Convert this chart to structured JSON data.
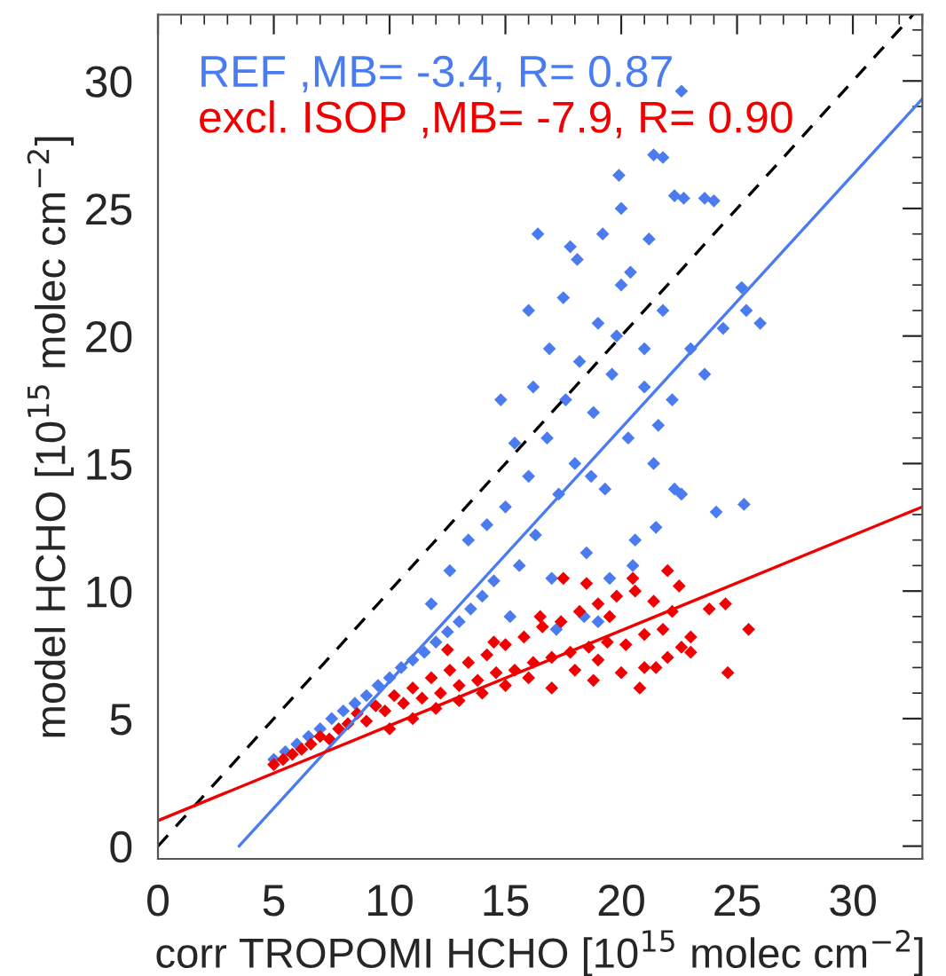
{
  "chart_data": {
    "type": "scatter",
    "xlabel": "corr TROPOMI HCHO [10$^{15}$ molec cm$^{−2}$]",
    "ylabel": "model HCHO [10$^{15}$ molec cm$^{−2}$]",
    "xlim": [
      0,
      33
    ],
    "ylim": [
      -0.5,
      32.6
    ],
    "xticks": [
      0,
      5,
      10,
      15,
      20,
      25,
      30
    ],
    "yticks": [
      0,
      5,
      10,
      15,
      20,
      25,
      30
    ],
    "grid": false,
    "legend": "top left",
    "marker": "diamond",
    "series": [
      {
        "name": "REF ,MB= -3.4, R= 0.87",
        "color": "#4a7cf0",
        "x": [
          5.0,
          5.5,
          6.0,
          6.5,
          7.0,
          7.5,
          8.0,
          8.5,
          9.0,
          9.5,
          10.0,
          10.5,
          11.0,
          11.5,
          12.0,
          12.5,
          13.0,
          13.5,
          14.0,
          14.5,
          11.8,
          12.6,
          13.4,
          14.2,
          15.0,
          15.2,
          15.6,
          16.0,
          16.3,
          16.8,
          17.0,
          17.3,
          17.6,
          18.0,
          18.2,
          18.5,
          18.8,
          19.0,
          19.3,
          19.6,
          20.0,
          20.3,
          20.6,
          21.0,
          21.4,
          21.8,
          22.2,
          15.4,
          16.2,
          16.9,
          17.5,
          18.1,
          18.7,
          19.2,
          19.8,
          20.4,
          21.0,
          21.6,
          22.3,
          23.0,
          17.2,
          18.4,
          19.5,
          20.5,
          21.5,
          22.6,
          23.6,
          24.4,
          25.2,
          25.4,
          26.0,
          24.1,
          25.3,
          19.9,
          21.8,
          22.7,
          24.0,
          22.6,
          21.4,
          22.3,
          23.6,
          16.4,
          17.8,
          20.0,
          21.2,
          14.8,
          16.0,
          19.0
        ],
        "values": [
          3.4,
          3.7,
          4.0,
          4.3,
          4.6,
          5.0,
          5.3,
          5.6,
          5.9,
          6.3,
          6.6,
          7.0,
          7.3,
          7.6,
          8.0,
          8.4,
          8.8,
          9.3,
          9.8,
          10.4,
          9.5,
          10.8,
          12.0,
          12.6,
          13.3,
          9.0,
          11.0,
          14.5,
          12.2,
          16.0,
          10.5,
          13.8,
          17.5,
          15.0,
          19.0,
          11.5,
          17.0,
          20.5,
          14.0,
          18.5,
          22.0,
          16.0,
          12.0,
          19.5,
          15.0,
          21.0,
          17.5,
          15.8,
          18.0,
          19.5,
          21.5,
          23.0,
          14.5,
          24.0,
          20.0,
          22.5,
          18.0,
          16.5,
          14.0,
          19.5,
          8.5,
          9.0,
          10.5,
          11.0,
          12.5,
          13.8,
          18.5,
          20.3,
          21.9,
          21.0,
          20.5,
          13.1,
          13.4,
          26.3,
          27.0,
          25.4,
          25.3,
          29.6,
          27.1,
          25.5,
          25.4,
          24.0,
          23.5,
          25.0,
          23.8,
          17.5,
          21.0,
          8.8
        ]
      },
      {
        "name": "excl. ISOP ,MB= -7.9, R= 0.90",
        "color": "#f00000",
        "x": [
          5.0,
          5.4,
          5.8,
          6.2,
          6.6,
          7.0,
          7.4,
          7.8,
          8.2,
          8.6,
          9.0,
          9.4,
          9.8,
          10.2,
          10.6,
          11.0,
          11.4,
          11.8,
          12.2,
          12.6,
          13.0,
          13.4,
          13.8,
          14.2,
          14.6,
          15.0,
          15.4,
          15.8,
          16.2,
          16.6,
          17.0,
          17.4,
          17.8,
          18.2,
          18.6,
          19.0,
          19.4,
          19.8,
          20.2,
          20.6,
          21.0,
          21.4,
          21.8,
          22.2,
          22.6,
          23.0,
          10.0,
          11.0,
          12.0,
          13.0,
          14.0,
          15.0,
          16.0,
          17.0,
          18.0,
          19.0,
          20.0,
          21.0,
          22.0,
          23.0,
          12.5,
          14.5,
          16.5,
          18.5,
          20.5,
          22.5,
          17.5,
          19.5,
          21.5,
          23.8,
          24.5,
          25.5,
          24.6,
          22.0,
          20.8,
          18.8
        ],
        "values": [
          3.2,
          3.4,
          3.6,
          3.8,
          4.0,
          4.3,
          4.2,
          4.6,
          4.8,
          5.2,
          4.9,
          5.5,
          5.3,
          5.9,
          5.6,
          6.2,
          5.8,
          6.6,
          6.0,
          6.9,
          6.3,
          7.2,
          6.5,
          7.5,
          6.8,
          7.9,
          6.9,
          8.2,
          7.2,
          8.6,
          7.4,
          8.8,
          7.6,
          9.2,
          7.8,
          9.5,
          8.0,
          9.8,
          7.9,
          10.0,
          8.3,
          9.6,
          8.5,
          9.2,
          7.8,
          8.2,
          4.6,
          5.0,
          5.4,
          5.7,
          6.0,
          6.3,
          6.6,
          6.2,
          6.9,
          7.3,
          6.8,
          7.0,
          7.4,
          7.6,
          7.7,
          8.0,
          9.0,
          10.3,
          10.5,
          10.2,
          10.5,
          9.0,
          7.0,
          9.3,
          9.5,
          8.5,
          6.8,
          10.8,
          6.2,
          6.5
        ]
      },
      {
        "type": "line",
        "marker": "none",
        "color": "#000000",
        "line_style": "dashed",
        "x": [
          0,
          32.6
        ],
        "values": [
          0,
          32.6
        ]
      },
      {
        "type": "line",
        "marker": "none",
        "color": "#4a7cf0",
        "line_style": "solid",
        "x": [
          3.5,
          33
        ],
        "values": [
          0,
          29.3
        ]
      },
      {
        "type": "line",
        "marker": "none",
        "color": "#f00000",
        "line_style": "solid",
        "x": [
          0,
          33
        ],
        "values": [
          1.0,
          13.3
        ]
      }
    ]
  }
}
